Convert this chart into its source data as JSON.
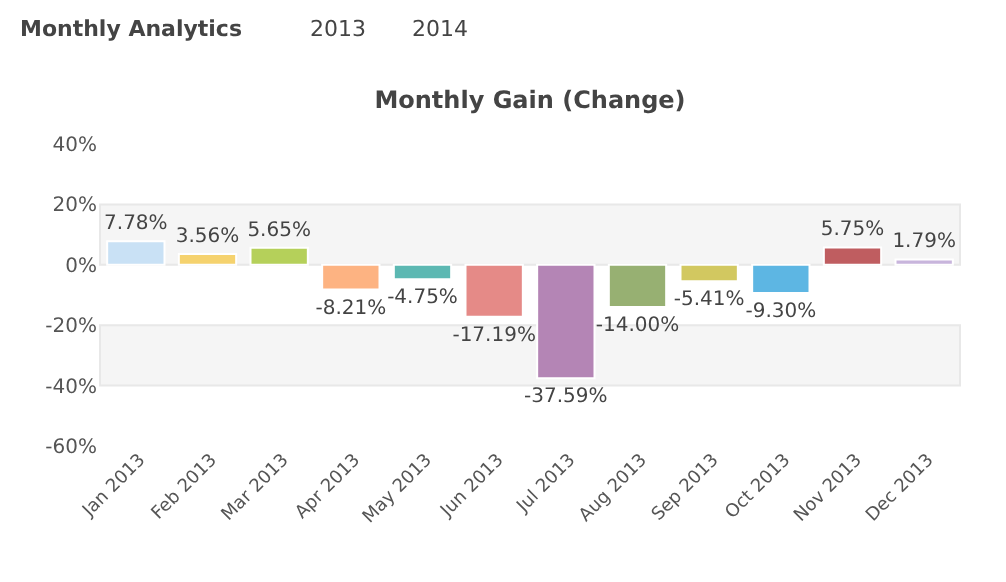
{
  "chart_data": {
    "type": "bar",
    "title": "Monthly Gain (Change)",
    "annotations": [
      "Monthly Analytics",
      "2013",
      "2014"
    ],
    "categories": [
      "Jan 2013",
      "Feb 2013",
      "Mar 2013",
      "Apr 2013",
      "May 2013",
      "Jun 2013",
      "Jul 2013",
      "Aug 2013",
      "Sep 2013",
      "Oct 2013",
      "Nov 2013",
      "Dec 2013"
    ],
    "values": [
      7.78,
      3.56,
      5.65,
      -8.21,
      -4.75,
      -17.19,
      -37.59,
      -14.0,
      -5.41,
      -9.3,
      5.75,
      1.79
    ],
    "value_labels": [
      "7.78%",
      "3.56%",
      "5.65%",
      "-8.21%",
      "-4.75%",
      "-17.19%",
      "-37.59%",
      "-14.00%",
      "-5.41%",
      "-9.30%",
      "5.75%",
      "1.79%"
    ],
    "colors": [
      "#c9e1f5",
      "#f5d26e",
      "#b5d05a",
      "#fdb382",
      "#5cb8b2",
      "#e58a87",
      "#b485b5",
      "#97b072",
      "#d2c860",
      "#5db6e3",
      "#bf5d60",
      "#c8b5dc"
    ],
    "ylim": [
      -60,
      40
    ],
    "yticks": [
      {
        "value": -60,
        "label": "-60%"
      },
      {
        "value": -40,
        "label": "-40%"
      },
      {
        "value": -20,
        "label": "-20%"
      },
      {
        "value": 0,
        "label": "0%"
      },
      {
        "value": 20,
        "label": "20%"
      },
      {
        "value": 40,
        "label": "40%"
      }
    ],
    "bands": [
      {
        "axis": "y",
        "from": 0,
        "to": 20,
        "color": "#f5f5f5"
      },
      {
        "axis": "y",
        "from": -20,
        "to": -40,
        "color": "#f5f5f5"
      }
    ],
    "grid": false
  }
}
